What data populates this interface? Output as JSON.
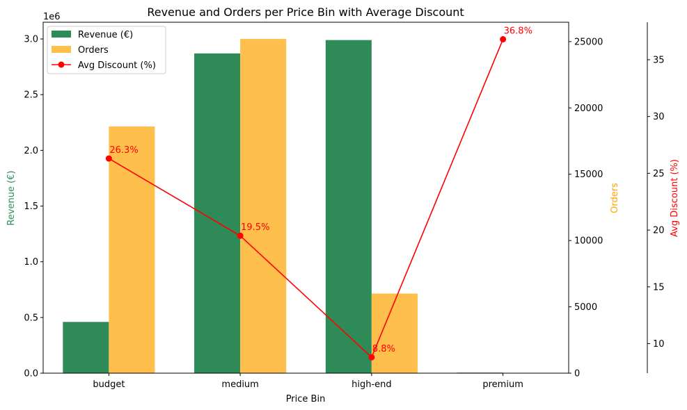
{
  "chart_data": {
    "type": "bar",
    "title": "Revenue and Orders per Price Bin with Average Discount",
    "xlabel": "Price Bin",
    "categories": [
      "budget",
      "medium",
      "high-end",
      "premium"
    ],
    "series": [
      {
        "name": "Revenue (€)",
        "axis": "left",
        "kind": "bar",
        "color": "#2e8b57",
        "values": [
          460000,
          2870000,
          2990000,
          5000
        ]
      },
      {
        "name": "Orders",
        "axis": "right",
        "kind": "bar",
        "color": "#ffbf4d",
        "values": [
          18600,
          25200,
          6000,
          0
        ]
      },
      {
        "name": "Avg Discount (%)",
        "axis": "right2",
        "kind": "line",
        "color": "#ff0000",
        "values": [
          26.3,
          19.5,
          8.8,
          36.8
        ],
        "labels": [
          "26.3%",
          "19.5%",
          "8.8%",
          "36.8%"
        ]
      }
    ],
    "axes": {
      "left": {
        "label": "Revenue (€)",
        "color": "#2e8b57",
        "ylim": [
          0,
          3.15
        ],
        "ticks": [
          0,
          0.5,
          1.0,
          1.5,
          2.0,
          2.5,
          3.0
        ],
        "tick_labels": [
          "0.0",
          "0.5",
          "1.0",
          "1.5",
          "2.0",
          "2.5",
          "3.0"
        ],
        "offset_label": "1e6",
        "scale": 1000000
      },
      "right": {
        "label": "Orders",
        "color": "#ffa500",
        "ylim": [
          0,
          26460
        ],
        "ticks": [
          0,
          5000,
          10000,
          15000,
          20000,
          25000
        ],
        "tick_labels": [
          "0",
          "5000",
          "10000",
          "15000",
          "20000",
          "25000"
        ]
      },
      "right2": {
        "label": "Avg Discount (%)",
        "color": "#ff0000",
        "ylim": [
          7.4,
          38.3
        ],
        "ticks": [
          10,
          15,
          20,
          25,
          30,
          35
        ],
        "tick_labels": [
          "10",
          "15",
          "20",
          "25",
          "30",
          "35"
        ]
      }
    },
    "legend": {
      "position": "top-left",
      "entries": [
        "Revenue (€)",
        "Orders",
        "Avg Discount (%)"
      ]
    },
    "grid": false
  }
}
